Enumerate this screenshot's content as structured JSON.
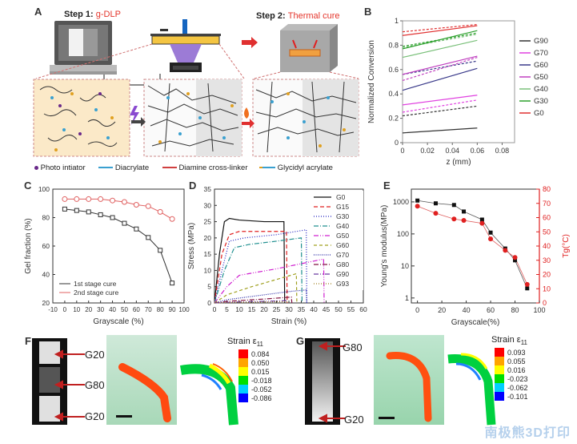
{
  "panelA": {
    "label": "A",
    "step1_prefix": "Step 1",
    "step1_name": "g-DLP",
    "step2_prefix": "Step 2",
    "step2_name": "Thermal cure",
    "legend": {
      "photo_initiator": "Photo intiator",
      "diacrylate": "Diacrylate",
      "diamine": "Diamine cross-linker",
      "glycidyl": "Glycidyl acrylate"
    }
  },
  "panelB": {
    "label": "B",
    "chart_data": {
      "type": "line",
      "xlabel": "z (mm)",
      "ylabel": "Normalized Conversion",
      "xlim": [
        0,
        0.09
      ],
      "ylim": [
        0,
        1
      ],
      "xticks": [
        "0",
        "0.02",
        "0.04",
        "0.06",
        "0.08"
      ],
      "yticks": [
        "0",
        "0.2",
        "0.4",
        "0.6",
        "0.8",
        "1"
      ],
      "series": [
        {
          "name": "G90",
          "color": "#333333",
          "solid": [
            0.08,
            0.12
          ],
          "dashed": [
            0.22,
            0.3
          ]
        },
        {
          "name": "G70",
          "color": "#e040e0",
          "solid": [
            0.31,
            0.39
          ],
          "dashed": [
            0.25,
            0.35
          ]
        },
        {
          "name": "G60",
          "color": "#3a3a8a",
          "solid": [
            0.43,
            0.61
          ],
          "dashed": [
            0.56,
            0.67
          ]
        },
        {
          "name": "G50",
          "color": "#c040c0",
          "solid": [
            0.56,
            0.71
          ],
          "dashed": [
            0.51,
            0.7
          ]
        },
        {
          "name": "G40",
          "color": "#7ac07a",
          "solid": [
            0.7,
            0.84
          ],
          "dashed": [
            0.78,
            0.89
          ]
        },
        {
          "name": "G30",
          "color": "#2ca02c",
          "solid": [
            0.77,
            0.92
          ],
          "dashed": [
            0.79,
            0.9
          ]
        },
        {
          "name": "G0",
          "color": "#e03030",
          "solid": [
            0.88,
            0.96
          ],
          "dashed": [
            0.91,
            0.97
          ]
        }
      ]
    }
  },
  "panelC": {
    "label": "C",
    "chart_data": {
      "type": "line",
      "xlabel": "Grayscale (%)",
      "ylabel": "Gel fraction (%)",
      "xlim": [
        -10,
        100
      ],
      "ylim": [
        20,
        100
      ],
      "xticks": [
        "0",
        "10",
        "20",
        "30",
        "40",
        "50",
        "60",
        "70",
        "80",
        "90",
        "100"
      ],
      "yticks": [
        "20",
        "40",
        "60",
        "80",
        "100"
      ],
      "x": [
        0,
        10,
        20,
        30,
        40,
        50,
        60,
        70,
        80,
        90
      ],
      "series": [
        {
          "name": "1st stage cure",
          "color": "#333333",
          "values": [
            86,
            85,
            84,
            82,
            80,
            76,
            72,
            66,
            57,
            34
          ]
        },
        {
          "name": "2nd stage cure",
          "color": "#e06060",
          "values": [
            93,
            93,
            93,
            93,
            92,
            91,
            89,
            88,
            84,
            79
          ]
        }
      ]
    }
  },
  "panelD": {
    "label": "D",
    "chart_data": {
      "type": "line",
      "xlabel": "Strain (%)",
      "ylabel": "Stress (MPa)",
      "xlim": [
        0,
        60
      ],
      "ylim": [
        0,
        35
      ],
      "xticks": [
        "0",
        "5",
        "10",
        "15",
        "20",
        "25",
        "30",
        "35",
        "40",
        "45",
        "50",
        "55",
        "60"
      ],
      "yticks": [
        "0",
        "5",
        "10",
        "15",
        "20",
        "25",
        "30",
        "35"
      ],
      "series": [
        {
          "name": "G0",
          "color": "#111111",
          "dash": "",
          "points": [
            [
              0,
              0
            ],
            [
              2,
              15
            ],
            [
              4,
              25
            ],
            [
              6,
              26
            ],
            [
              10,
              25.5
            ],
            [
              20,
              25
            ],
            [
              28,
              25
            ],
            [
              28.3,
              0
            ]
          ]
        },
        {
          "name": "G15",
          "color": "#e02020",
          "dash": "5,3",
          "points": [
            [
              0,
              0
            ],
            [
              3,
              15
            ],
            [
              6,
              21
            ],
            [
              10,
              22
            ],
            [
              20,
              22
            ],
            [
              29,
              22
            ],
            [
              29.3,
              0
            ]
          ]
        },
        {
          "name": "G30",
          "color": "#2020c0",
          "dash": "1,2",
          "points": [
            [
              0,
              0
            ],
            [
              3,
              10
            ],
            [
              6,
              19
            ],
            [
              12,
              20
            ],
            [
              25,
              21
            ],
            [
              37,
              22.5
            ],
            [
              37.2,
              0
            ]
          ]
        },
        {
          "name": "G40",
          "color": "#209090",
          "dash": "6,2,1,2",
          "points": [
            [
              0,
              0
            ],
            [
              4,
              10
            ],
            [
              8,
              17
            ],
            [
              14,
              18
            ],
            [
              25,
              19
            ],
            [
              35,
              20
            ],
            [
              35.3,
              0
            ]
          ]
        },
        {
          "name": "G50",
          "color": "#d020d0",
          "dash": "6,2,1,2,1,2",
          "points": [
            [
              0,
              0
            ],
            [
              5,
              5
            ],
            [
              10,
              8.5
            ],
            [
              25,
              10.5
            ],
            [
              44,
              13.5
            ],
            [
              44.2,
              0
            ]
          ]
        },
        {
          "name": "G60",
          "color": "#a0a020",
          "dash": "4,3",
          "points": [
            [
              0,
              0
            ],
            [
              5,
              2.5
            ],
            [
              15,
              5
            ],
            [
              33,
              9
            ],
            [
              33.2,
              0
            ]
          ]
        },
        {
          "name": "G70",
          "color": "#2020a0",
          "dash": "1,1.5",
          "points": [
            [
              0,
              0
            ],
            [
              5,
              1
            ],
            [
              15,
              2
            ],
            [
              30,
              3.5
            ],
            [
              37,
              4
            ],
            [
              37.2,
              0
            ]
          ]
        },
        {
          "name": "G80",
          "color": "#801040",
          "dash": "6,2,1,2",
          "points": [
            [
              0,
              0
            ],
            [
              5,
              0.5
            ],
            [
              20,
              1.2
            ],
            [
              31,
              1.8
            ],
            [
              31.2,
              0
            ]
          ]
        },
        {
          "name": "G90",
          "color": "#6a3aa0",
          "dash": "6,2,1,2,1,2",
          "points": [
            [
              0,
              0
            ],
            [
              10,
              0.3
            ],
            [
              25,
              0.6
            ],
            [
              29,
              0.7
            ]
          ]
        },
        {
          "name": "G93",
          "color": "#a08020",
          "dash": "1,2",
          "points": [
            [
              0,
              0
            ],
            [
              10,
              0.2
            ],
            [
              25,
              0.35
            ],
            [
              30,
              0.4
            ]
          ]
        }
      ]
    }
  },
  "panelE": {
    "label": "E",
    "chart_data": {
      "type": "line",
      "xlabel": "Grayscale(%)",
      "ylabel": "Young's modulus(MPa)",
      "ylabel_right": "Tg(°C)",
      "xlim": [
        -5,
        100
      ],
      "xticks": [
        "0",
        "20",
        "40",
        "60",
        "80",
        "100"
      ],
      "yticks_left": [
        "1",
        "10",
        "100",
        "1000"
      ],
      "ylim_right": [
        0,
        80
      ],
      "yticks_right": [
        "0",
        "10",
        "20",
        "30",
        "40",
        "50",
        "60",
        "70",
        "80"
      ],
      "x": [
        0,
        15,
        30,
        38,
        53,
        60,
        72,
        80,
        90
      ],
      "series": [
        {
          "name": "Young's modulus",
          "color": "#111111",
          "values": [
            1100,
            900,
            800,
            500,
            280,
            110,
            35,
            15,
            2
          ]
        },
        {
          "name": "Tg",
          "color": "#e02020",
          "values": [
            68,
            63,
            59,
            58,
            56,
            45,
            37,
            32,
            13
          ]
        }
      ]
    }
  },
  "panelF": {
    "label": "F",
    "top": "G20",
    "middle": "G80",
    "bottom": "G20",
    "strain_title": "Strain ε",
    "strain_sub": "11",
    "scale": [
      "0.084",
      "0.050",
      "0.015",
      "-0.018",
      "-0.052",
      "-0.086"
    ],
    "colors": [
      "#ff0000",
      "#ffa500",
      "#ffff00",
      "#00e000",
      "#00d0ff",
      "#0000ff"
    ]
  },
  "panelG": {
    "label": "G",
    "top": "G80",
    "bottom": "G20",
    "strain_title": "Strain ε",
    "strain_sub": "11",
    "scale": [
      "0.093",
      "0.055",
      "0.016",
      "-0.023",
      "-0.062",
      "-0.101"
    ],
    "colors": [
      "#ff0000",
      "#ffa500",
      "#ffff00",
      "#00e000",
      "#00d0ff",
      "#0000ff"
    ]
  },
  "watermark": "南极熊3D打印"
}
